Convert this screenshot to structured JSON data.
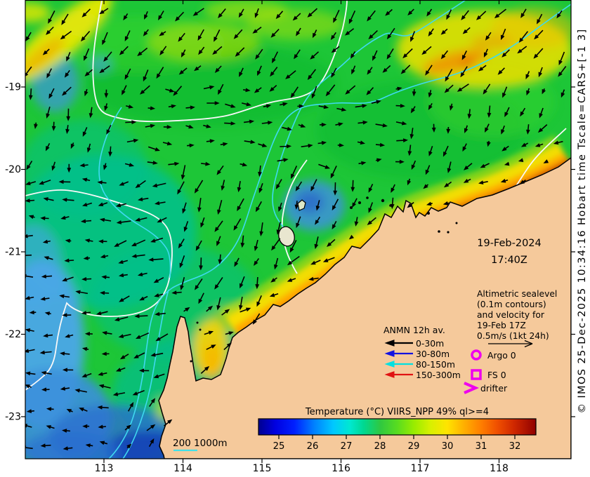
{
  "map": {
    "date_line1": "19-Feb-2024",
    "date_line2": "17:40Z",
    "info_text": "Altimetric sealevel\n(0.1m contours)\nand velocity for\n19-Feb 17Z\n0.5m/s (1kt 24h)",
    "markers": [
      {
        "label": "Argo 0",
        "symbol": "magenta-circle"
      },
      {
        "label": "FS 0",
        "symbol": "magenta-square"
      },
      {
        "label": "drifter",
        "symbol": "magenta-arrow"
      }
    ],
    "anmn": {
      "title": "ANMN 12h av.",
      "items": [
        {
          "label": "0-30m",
          "color": "#000000"
        },
        {
          "label": "30-80m",
          "color": "#1212e0"
        },
        {
          "label": "80-150m",
          "color": "#00e0e0"
        },
        {
          "label": "150-300m",
          "color": "#e01212"
        }
      ]
    },
    "scalebar_label": "200 1000m",
    "copyright": "© IMOS 25-Dec-2025 10:34:16 Hobart time Tscale=CARS+[-1 3]"
  },
  "axes": {
    "x_ticks": [
      "113",
      "114",
      "115",
      "116",
      "117",
      "118"
    ],
    "y_ticks": [
      "-19",
      "-20",
      "-21",
      "-22",
      "-23"
    ]
  },
  "colorbar": {
    "title": "Temperature (°C) VIIRS_NPP 49% ql>=4",
    "ticks": [
      "25",
      "26",
      "27",
      "28",
      "29",
      "30",
      "31",
      "32"
    ],
    "range_c": [
      24.4,
      32.6
    ]
  },
  "colors": {
    "land": "#f5c99b",
    "sea_base": "#1dc637",
    "magenta": "#ee00ee",
    "bathy_cyan": "#3fd9ef",
    "ssh_white": "#f8f8f8"
  }
}
